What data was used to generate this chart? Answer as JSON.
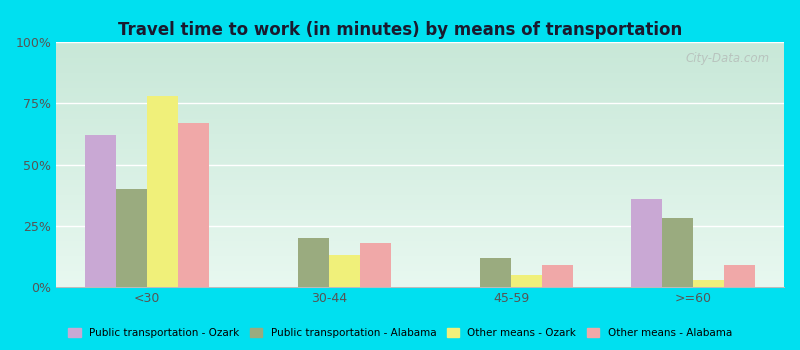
{
  "title": "Travel time to work (in minutes) by means of transportation",
  "categories": [
    "<30",
    "30-44",
    "45-59",
    ">=60"
  ],
  "series": [
    {
      "name": "Public transportation - Ozark",
      "color": "#c9a8d4",
      "values": [
        62,
        0,
        0,
        36
      ]
    },
    {
      "name": "Public transportation - Alabama",
      "color": "#9aab7f",
      "values": [
        40,
        20,
        12,
        28
      ]
    },
    {
      "name": "Other means - Ozark",
      "color": "#f0f07a",
      "values": [
        78,
        13,
        5,
        3
      ]
    },
    {
      "name": "Other means - Alabama",
      "color": "#f0a8a8",
      "values": [
        67,
        18,
        9,
        9
      ]
    }
  ],
  "ylim": [
    0,
    100
  ],
  "yticks": [
    0,
    25,
    50,
    75,
    100
  ],
  "ytick_labels": [
    "0%",
    "25%",
    "50%",
    "75%",
    "100%"
  ],
  "background_color": "#00e0f0",
  "plot_bg_top": "#c8e8d8",
  "plot_bg_bottom": "#e8f8f0",
  "title_fontsize": 12,
  "title_color": "#1a1a2e",
  "watermark": "City-Data.com",
  "bar_width": 0.17,
  "grid_color": "#ffffff",
  "tick_color": "#555555",
  "spine_color": "#bbbbbb"
}
